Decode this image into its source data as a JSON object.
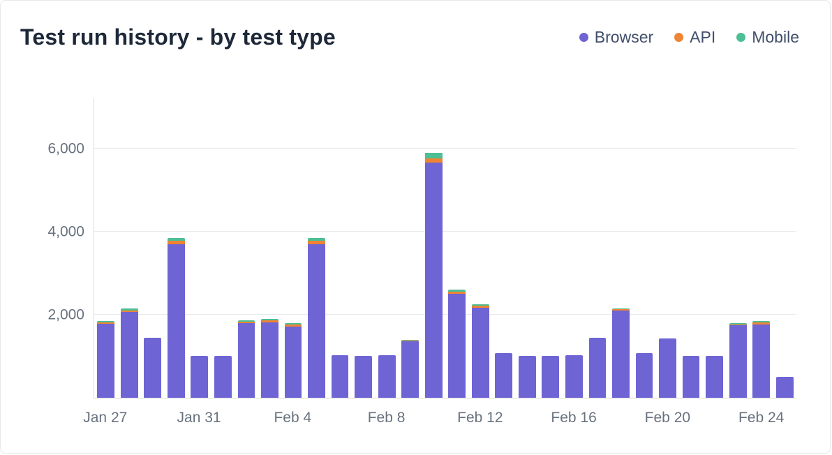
{
  "header": {
    "title": "Test run history - by test type"
  },
  "legend": [
    {
      "label": "Browser",
      "color": "#6e64d3"
    },
    {
      "label": "API",
      "color": "#ee8434"
    },
    {
      "label": "Mobile",
      "color": "#4dbf94"
    }
  ],
  "chart_data": {
    "type": "bar",
    "stacked": true,
    "title": "Test run history - by test type",
    "categories": [
      "Jan 27",
      "Jan 28",
      "Jan 29",
      "Jan 30",
      "Jan 31",
      "Feb 1",
      "Feb 2",
      "Feb 3",
      "Feb 4",
      "Feb 5",
      "Feb 6",
      "Feb 7",
      "Feb 8",
      "Feb 9",
      "Feb 10",
      "Feb 11",
      "Feb 12",
      "Feb 13",
      "Feb 14",
      "Feb 15",
      "Feb 16",
      "Feb 17",
      "Feb 18",
      "Feb 19",
      "Feb 20",
      "Feb 21",
      "Feb 22",
      "Feb 23",
      "Feb 24",
      "Feb 25"
    ],
    "series": [
      {
        "name": "Browser",
        "color": "#6e64d3",
        "values": [
          1780,
          2060,
          1450,
          3700,
          1000,
          1000,
          1800,
          1820,
          1720,
          3700,
          1030,
          1000,
          1020,
          1360,
          5650,
          2500,
          2170,
          1070,
          1000,
          1000,
          1030,
          1450,
          2090,
          1080,
          1420,
          1000,
          1010,
          1740,
          1760,
          500
        ]
      },
      {
        "name": "API",
        "color": "#ee8434",
        "values": [
          40,
          45,
          0,
          70,
          0,
          0,
          35,
          45,
          45,
          75,
          0,
          0,
          0,
          20,
          100,
          55,
          45,
          0,
          0,
          0,
          0,
          0,
          35,
          0,
          0,
          0,
          0,
          30,
          45,
          0
        ]
      },
      {
        "name": "Mobile",
        "color": "#4dbf94",
        "values": [
          30,
          45,
          0,
          80,
          0,
          0,
          35,
          35,
          35,
          75,
          0,
          0,
          0,
          20,
          150,
          45,
          35,
          0,
          0,
          0,
          0,
          0,
          25,
          0,
          0,
          0,
          0,
          30,
          45,
          0
        ]
      }
    ],
    "x_tick_labels": [
      "Jan 27",
      "Jan 31",
      "Feb 4",
      "Feb 8",
      "Feb 12",
      "Feb 16",
      "Feb 20",
      "Feb 24"
    ],
    "x_tick_every": 4,
    "y_ticks": [
      2000,
      4000,
      6000
    ],
    "y_tick_labels": [
      "2,000",
      "4,000",
      "6,000"
    ],
    "ylim": [
      0,
      7200
    ],
    "grid": "horizontal",
    "legend_position": "top-right"
  }
}
